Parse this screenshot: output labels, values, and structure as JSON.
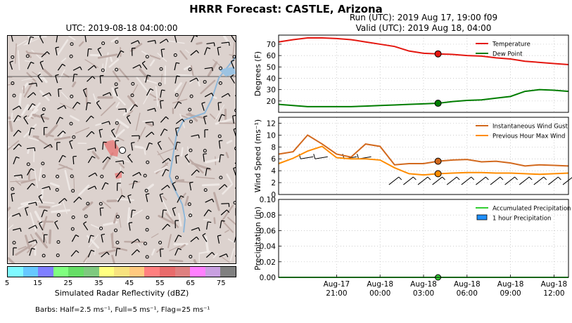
{
  "title": "HRRR Forecast: CASTLE, Arizona",
  "map": {
    "title": "UTC: 2019-08-18 04:00:00",
    "colorbar": {
      "label": "Simulated Radar Reflectivity (dBZ)",
      "ticks": [
        "5",
        "15",
        "25",
        "35",
        "45",
        "55",
        "65",
        "75"
      ],
      "colors": [
        "#7ff9ff",
        "#66c8ff",
        "#7f7fff",
        "#80ff80",
        "#66dd66",
        "#7fc97f",
        "#ffff80",
        "#f7e27f",
        "#ffc97f",
        "#ff7f7f",
        "#e86b6b",
        "#de8080",
        "#ff7fff",
        "#c8a0e0",
        "#808080"
      ]
    },
    "barbs_note": "Barbs: Half=2.5 ms⁻¹, Full=5 ms⁻¹, Flag=25 ms⁻¹"
  },
  "run_line": "Run (UTC): 2019 Aug 17, 19:00 f09",
  "valid_line": "Valid (UTC): 2019 Aug 18, 04:00",
  "x_ticks": [
    "Aug-17\n21:00",
    "Aug-18\n00:00",
    "Aug-18\n03:00",
    "Aug-18\n06:00",
    "Aug-18\n09:00",
    "Aug-18\n12:00"
  ],
  "colors": {
    "temperature": "#e4160f",
    "dewpoint": "#007d00",
    "gust": "#d2691e",
    "maxwind": "#ff8c00",
    "accum": "#32cd32",
    "hourly": "#1e90ff"
  },
  "chart_data": [
    {
      "type": "line",
      "ylabel": "Degrees (F)",
      "ylim": [
        10,
        78
      ],
      "yticks": [
        20,
        30,
        40,
        50,
        60,
        70
      ],
      "xlim": [
        17,
        37
      ],
      "legend": "top-right",
      "grid": true,
      "current_hour": 28,
      "series": [
        {
          "name": "Temperature",
          "color_key": "temperature",
          "x": [
            17,
            18,
            19,
            20,
            21,
            22,
            23,
            24,
            25,
            26,
            27,
            28,
            29,
            30,
            31,
            32,
            33,
            34,
            35,
            36,
            37
          ],
          "values": [
            72,
            74,
            75.5,
            75.5,
            75,
            74,
            72,
            70,
            68,
            64,
            62,
            61.5,
            61,
            60,
            59.5,
            58,
            57,
            55,
            54,
            53,
            52
          ]
        },
        {
          "name": "Dew Point",
          "color_key": "dewpoint",
          "x": [
            17,
            18,
            19,
            20,
            21,
            22,
            23,
            24,
            25,
            26,
            27,
            28,
            29,
            30,
            31,
            32,
            33,
            34,
            35,
            36,
            37
          ],
          "values": [
            17,
            16,
            15,
            15,
            15,
            15,
            15.5,
            16,
            16.5,
            17,
            17.5,
            18,
            19.5,
            20.5,
            21,
            22.5,
            24,
            28.5,
            30,
            29.5,
            28.5
          ]
        }
      ]
    },
    {
      "type": "line",
      "ylabel": "Wind Speed (ms⁻¹)",
      "ylim": [
        0,
        13
      ],
      "yticks": [
        0,
        2,
        4,
        6,
        8,
        10,
        12
      ],
      "xlim": [
        17,
        37
      ],
      "legend": "top-right",
      "grid": true,
      "current_hour": 28,
      "series": [
        {
          "name": "Instantaneous Wind Gust",
          "color_key": "gust",
          "x": [
            17,
            18,
            19,
            20,
            21,
            22,
            23,
            24,
            25,
            26,
            27,
            28,
            29,
            30,
            31,
            32,
            33,
            34,
            35,
            36,
            37
          ],
          "values": [
            6.8,
            7.2,
            10,
            8.5,
            6.8,
            6.3,
            8.5,
            8.1,
            5,
            5.2,
            5.2,
            5.6,
            5.8,
            5.9,
            5.5,
            5.6,
            5.3,
            4.8,
            5.0,
            4.9,
            4.8
          ]
        },
        {
          "name": "Previous Hour Max Wind",
          "color_key": "maxwind",
          "x": [
            17,
            18,
            19,
            20,
            21,
            22,
            23,
            24,
            25,
            26,
            27,
            28,
            29,
            30,
            31,
            32,
            33,
            34,
            35,
            36,
            37
          ],
          "values": [
            5.2,
            6.1,
            7.3,
            8.1,
            6.2,
            6.0,
            6.0,
            5.8,
            4.5,
            3.5,
            3.3,
            3.5,
            3.6,
            3.7,
            3.7,
            3.6,
            3.6,
            3.5,
            3.4,
            3.5,
            3.6
          ]
        }
      ]
    },
    {
      "type": "line",
      "ylabel": "Precipitation (in)",
      "ylim": [
        0,
        0.1
      ],
      "yticks": [
        "0.00",
        "0.02",
        "0.04",
        "0.06",
        "0.08",
        "0.10"
      ],
      "xlim": [
        17,
        37
      ],
      "legend": "top-right",
      "grid": true,
      "current_hour": 28,
      "series": [
        {
          "name": "Accumulated Precipitation",
          "color_key": "accum",
          "x": [
            17,
            37
          ],
          "values": [
            0,
            0
          ]
        },
        {
          "name": "1 hour Precipitation",
          "color_key": "hourly",
          "x": [],
          "values": []
        }
      ]
    }
  ]
}
